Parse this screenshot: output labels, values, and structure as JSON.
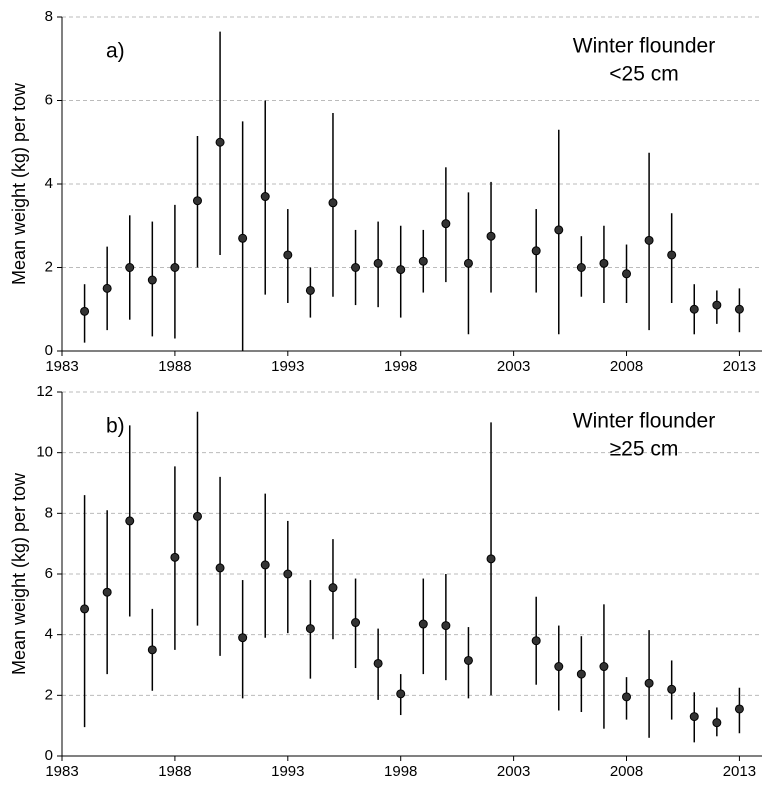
{
  "chart_data": [
    {
      "type": "scatter",
      "panel_label": "a)",
      "annotation": [
        "Winter flounder",
        "<25 cm"
      ],
      "y_label": "Mean weight (kg) per tow",
      "x": [
        1984,
        1985,
        1986,
        1987,
        1988,
        1989,
        1990,
        1991,
        1992,
        1993,
        1994,
        1995,
        1996,
        1997,
        1998,
        1999,
        2000,
        2001,
        2002,
        2004,
        2005,
        2006,
        2007,
        2008,
        2009,
        2010,
        2011,
        2012,
        2013
      ],
      "series": [
        {
          "color": "#333333",
          "values": [
            0.95,
            1.5,
            2.0,
            1.7,
            2.0,
            3.6,
            5.0,
            2.7,
            3.7,
            2.3,
            1.45,
            3.55,
            2.0,
            2.1,
            1.95,
            2.15,
            3.05,
            2.1,
            2.75,
            2.4,
            2.9,
            2.0,
            2.1,
            1.85,
            2.65,
            2.3,
            1.0,
            1.1,
            1.0
          ],
          "lower": [
            0.2,
            0.5,
            0.75,
            0.35,
            0.3,
            2.0,
            2.3,
            0,
            1.35,
            1.15,
            0.8,
            1.3,
            1.1,
            1.05,
            0.8,
            1.4,
            1.65,
            0.4,
            1.4,
            1.4,
            0.4,
            1.3,
            1.15,
            1.15,
            0.5,
            1.15,
            0.4,
            0.65,
            0.45
          ],
          "upper": [
            1.6,
            2.5,
            3.25,
            3.1,
            3.5,
            5.15,
            7.65,
            5.5,
            6.0,
            3.4,
            2.0,
            5.7,
            2.9,
            3.1,
            3.0,
            2.9,
            4.4,
            3.8,
            4.05,
            3.4,
            5.3,
            2.75,
            3.0,
            2.55,
            4.75,
            3.3,
            1.6,
            1.45,
            1.5
          ]
        }
      ],
      "xlim": [
        1983,
        2014
      ],
      "xticks": [
        1983,
        1988,
        1993,
        1998,
        2003,
        2008,
        2013
      ],
      "ylim": [
        0,
        8
      ],
      "yticks": [
        0,
        2,
        4,
        6,
        8
      ],
      "grid": true
    },
    {
      "type": "scatter",
      "panel_label": "b)",
      "annotation": [
        "Winter flounder",
        "≥25 cm"
      ],
      "y_label": "Mean weight (kg) per tow",
      "x": [
        1984,
        1985,
        1986,
        1987,
        1988,
        1989,
        1990,
        1991,
        1992,
        1993,
        1994,
        1995,
        1996,
        1997,
        1998,
        1999,
        2000,
        2001,
        2002,
        2004,
        2005,
        2006,
        2007,
        2008,
        2009,
        2010,
        2011,
        2012,
        2013
      ],
      "series": [
        {
          "color": "#333333",
          "values": [
            4.85,
            5.4,
            7.75,
            3.5,
            6.55,
            7.9,
            6.2,
            3.9,
            6.3,
            6.0,
            4.2,
            5.55,
            4.4,
            3.05,
            2.05,
            4.35,
            4.3,
            3.15,
            6.5,
            3.8,
            2.95,
            2.7,
            2.95,
            1.95,
            2.4,
            2.2,
            1.3,
            1.1,
            1.55
          ],
          "lower": [
            0.95,
            2.7,
            4.6,
            2.15,
            3.5,
            4.3,
            3.3,
            1.9,
            3.9,
            4.05,
            2.55,
            3.85,
            2.9,
            1.85,
            1.35,
            2.7,
            2.5,
            1.9,
            2.0,
            2.35,
            1.5,
            1.45,
            0.9,
            1.2,
            0.6,
            1.2,
            0.45,
            0.65,
            0.75
          ],
          "upper": [
            8.6,
            8.1,
            10.9,
            4.85,
            9.55,
            11.35,
            9.2,
            5.8,
            8.65,
            7.75,
            5.8,
            7.15,
            5.85,
            4.2,
            2.7,
            5.85,
            6.0,
            4.25,
            11.0,
            5.25,
            4.3,
            3.95,
            5.0,
            2.6,
            4.15,
            3.15,
            2.1,
            1.6,
            2.25
          ]
        }
      ],
      "xlim": [
        1983,
        2014
      ],
      "xticks": [
        1983,
        1988,
        1993,
        1998,
        2003,
        2008,
        2013
      ],
      "ylim": [
        0,
        12
      ],
      "yticks": [
        0,
        2,
        4,
        6,
        8,
        10,
        12
      ],
      "grid": true
    }
  ]
}
